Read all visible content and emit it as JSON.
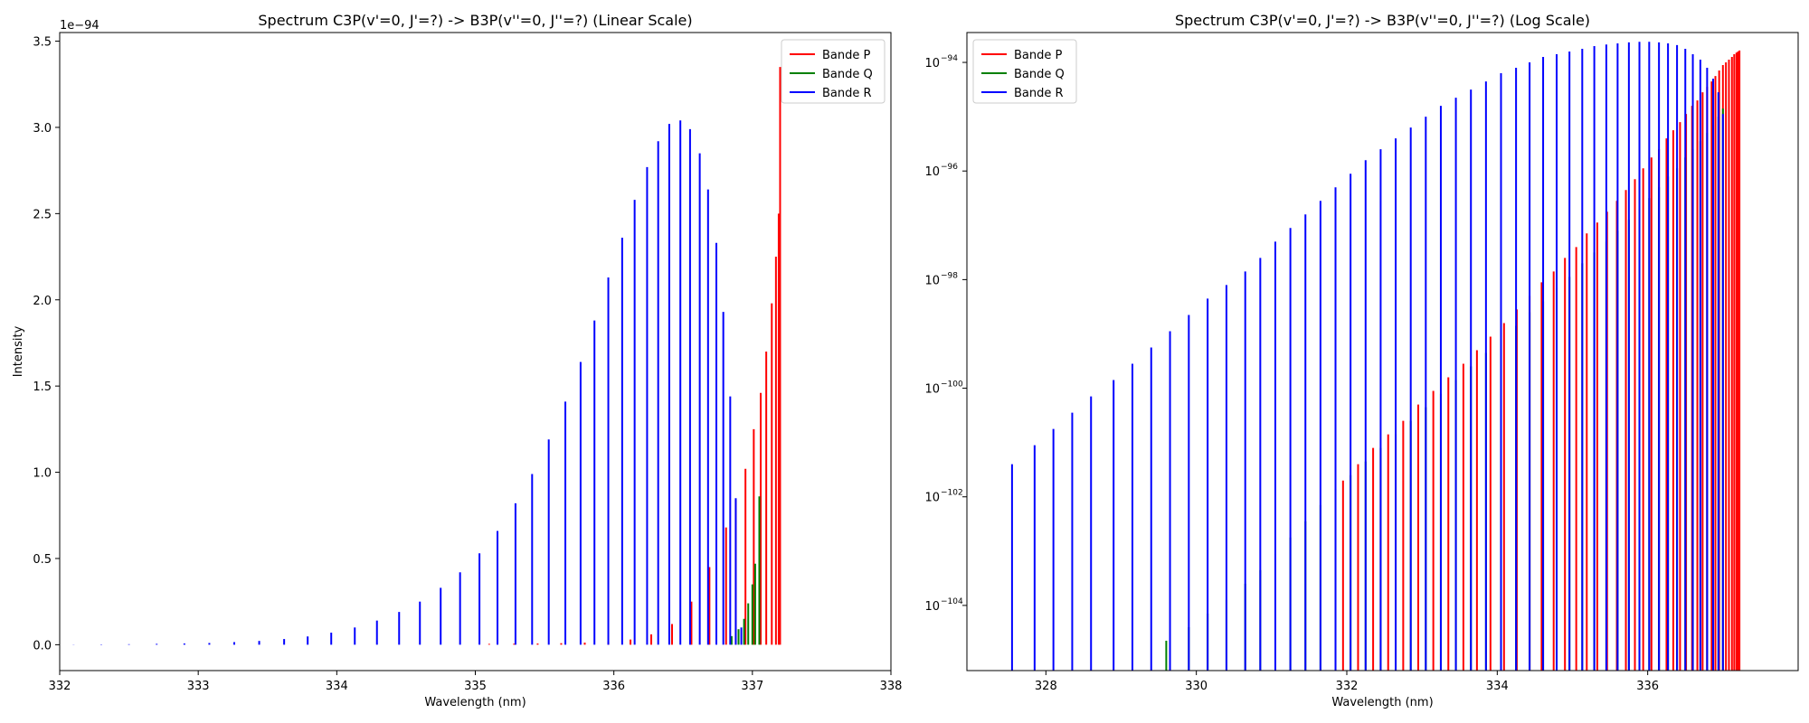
{
  "chart_data": [
    {
      "type": "line",
      "title": "Spectrum C3P(v'=0, J'=?) -> B3P(v''=0, J''=?) (Linear Scale)",
      "xlabel": "Wavelength (nm)",
      "ylabel": "Intensity",
      "y_scale": "linear",
      "y_multiplier_label": "1e−94",
      "xlim": [
        332,
        338
      ],
      "ylim": [
        -0.15,
        3.55
      ],
      "x_ticks": [
        332,
        333,
        334,
        335,
        336,
        337,
        338
      ],
      "y_ticks": [
        0.0,
        0.5,
        1.0,
        1.5,
        2.0,
        2.5,
        3.0,
        3.5
      ],
      "x_tick_labels": [
        "332",
        "333",
        "334",
        "335",
        "336",
        "337",
        "338"
      ],
      "y_tick_labels": [
        "0.0",
        "0.5",
        "1.0",
        "1.5",
        "2.0",
        "2.5",
        "3.0",
        "3.5"
      ],
      "legend_position": "top-right",
      "grid": false,
      "series": [
        {
          "name": "Bande P",
          "color": "#ff0000",
          "x": [
            335.1,
            335.28,
            335.45,
            335.62,
            335.79,
            335.96,
            336.12,
            336.27,
            336.42,
            336.56,
            336.69,
            336.81,
            336.88,
            336.95,
            337.01,
            337.06,
            337.1,
            337.14,
            337.17,
            337.19,
            337.2
          ],
          "y": [
            0.005,
            0.006,
            0.007,
            0.009,
            0.012,
            0.018,
            0.03,
            0.06,
            0.12,
            0.25,
            0.45,
            0.68,
            0.84,
            1.02,
            1.25,
            1.46,
            1.7,
            1.98,
            2.25,
            2.5,
            3.35
          ]
        },
        {
          "name": "Bande Q",
          "color": "#008000",
          "x": [
            336.85,
            336.9,
            336.94,
            336.97,
            337.0,
            337.02,
            337.05
          ],
          "y": [
            0.05,
            0.09,
            0.15,
            0.24,
            0.35,
            0.47,
            0.86
          ]
        },
        {
          "name": "Bande R",
          "color": "#0000ff",
          "x": [
            332.1,
            332.3,
            332.5,
            332.7,
            332.9,
            333.08,
            333.26,
            333.44,
            333.62,
            333.79,
            333.96,
            334.13,
            334.29,
            334.45,
            334.6,
            334.75,
            334.89,
            335.03,
            335.16,
            335.29,
            335.41,
            335.53,
            335.65,
            335.76,
            335.86,
            335.96,
            336.06,
            336.15,
            336.24,
            336.32,
            336.4,
            336.48,
            336.55,
            336.62,
            336.68,
            336.74,
            336.79,
            336.84,
            336.88,
            336.92
          ],
          "y": [
            0.001,
            0.002,
            0.003,
            0.005,
            0.007,
            0.01,
            0.015,
            0.022,
            0.033,
            0.048,
            0.07,
            0.1,
            0.14,
            0.19,
            0.25,
            0.33,
            0.42,
            0.53,
            0.66,
            0.82,
            0.99,
            1.19,
            1.41,
            1.64,
            1.88,
            2.13,
            2.36,
            2.58,
            2.77,
            2.92,
            3.02,
            3.04,
            2.99,
            2.85,
            2.64,
            2.33,
            1.93,
            1.44,
            0.85,
            0.1
          ]
        }
      ]
    },
    {
      "type": "line",
      "title": "Spectrum C3P(v'=0, J'=?) -> B3P(v''=0, J''=?) (Log Scale)",
      "xlabel": "Wavelength (nm)",
      "ylabel": "",
      "y_scale": "log",
      "xlim": [
        326.95,
        338.0
      ],
      "ylim_log10": [
        -105.2,
        -93.45
      ],
      "x_ticks": [
        328,
        330,
        332,
        334,
        336
      ],
      "x_tick_labels": [
        "328",
        "330",
        "332",
        "334",
        "336"
      ],
      "y_ticks_log10": [
        -104,
        -102,
        -100,
        -98,
        -96,
        -94
      ],
      "y_tick_labels": [
        "10",
        "10",
        "10",
        "10",
        "10",
        "10"
      ],
      "y_tick_exponents": [
        "−104",
        "−102",
        "−100",
        "−98",
        "−96",
        "−94"
      ],
      "legend_position": "top-left",
      "grid": false,
      "series": [
        {
          "name": "Bande P",
          "color": "#ff0000",
          "x": [
            331.95,
            332.15,
            332.35,
            332.55,
            332.75,
            332.95,
            333.15,
            333.35,
            333.55,
            333.73,
            333.91,
            334.09,
            334.26,
            334.43,
            334.59,
            334.75,
            334.9,
            335.05,
            335.19,
            335.33,
            335.46,
            335.59,
            335.71,
            335.83,
            335.94,
            336.05,
            336.15,
            336.25,
            336.34,
            336.43,
            336.51,
            336.59,
            336.66,
            336.73,
            336.79,
            336.85,
            336.9,
            336.95,
            337.0,
            337.04,
            337.08,
            337.12,
            337.15,
            337.18,
            337.2,
            337.22
          ],
          "y_log10": [
            -101.7,
            -101.4,
            -101.1,
            -100.85,
            -100.6,
            -100.3,
            -100.05,
            -99.8,
            -99.55,
            -99.3,
            -99.05,
            -98.8,
            -98.55,
            -98.3,
            -98.05,
            -97.85,
            -97.6,
            -97.4,
            -97.15,
            -96.95,
            -96.75,
            -96.55,
            -96.35,
            -96.15,
            -95.95,
            -95.75,
            -95.6,
            -95.4,
            -95.25,
            -95.1,
            -94.95,
            -94.8,
            -94.7,
            -94.55,
            -94.45,
            -94.35,
            -94.25,
            -94.15,
            -94.05,
            -94.0,
            -93.95,
            -93.9,
            -93.85,
            -93.82,
            -93.8,
            -93.78
          ]
        },
        {
          "name": "Bande Q",
          "color": "#008000",
          "x": [
            329.6,
            329.9,
            330.15,
            330.4,
            330.65,
            330.85,
            331.05,
            331.25,
            331.45,
            331.65,
            331.85,
            332.05,
            332.25,
            332.45,
            332.65,
            332.85,
            333.05,
            333.25,
            333.45,
            333.65,
            333.85,
            334.05,
            334.25,
            334.43,
            334.61,
            334.79,
            334.96,
            335.13,
            335.29,
            335.45,
            335.6,
            335.75,
            335.89,
            336.02,
            336.15,
            336.27,
            336.39,
            336.5,
            336.6,
            336.7,
            336.79,
            336.87,
            336.94,
            337.0
          ],
          "y_log10": [
            -104.65,
            -104.4,
            -104.15,
            -103.9,
            -103.6,
            -103.35,
            -103.05,
            -102.75,
            -102.45,
            -102.15,
            -101.85,
            -101.6,
            -101.35,
            -101.1,
            -100.85,
            -100.6,
            -100.35,
            -100.1,
            -99.85,
            -99.6,
            -99.35,
            -99.1,
            -98.85,
            -98.6,
            -98.4,
            -98.15,
            -97.95,
            -97.7,
            -97.5,
            -97.3,
            -97.1,
            -96.9,
            -96.7,
            -96.5,
            -96.3,
            -96.1,
            -95.95,
            -95.75,
            -95.6,
            -95.45,
            -95.3,
            -95.15,
            -95.0,
            -94.85
          ]
        },
        {
          "name": "Bande R",
          "color": "#0000ff",
          "x": [
            327.55,
            327.85,
            328.1,
            328.35,
            328.6,
            328.9,
            329.15,
            329.4,
            329.65,
            329.9,
            330.15,
            330.4,
            330.65,
            330.85,
            331.05,
            331.25,
            331.45,
            331.65,
            331.85,
            332.05,
            332.25,
            332.45,
            332.65,
            332.85,
            333.05,
            333.25,
            333.45,
            333.65,
            333.85,
            334.05,
            334.25,
            334.43,
            334.61,
            334.79,
            334.96,
            335.13,
            335.29,
            335.45,
            335.6,
            335.75,
            335.89,
            336.02,
            336.15,
            336.27,
            336.39,
            336.5,
            336.6,
            336.7,
            336.79,
            336.87,
            336.94,
            337.0
          ],
          "y_log10": [
            -101.4,
            -101.05,
            -100.75,
            -100.45,
            -100.15,
            -99.85,
            -99.55,
            -99.25,
            -98.95,
            -98.65,
            -98.35,
            -98.1,
            -97.85,
            -97.6,
            -97.3,
            -97.05,
            -96.8,
            -96.55,
            -96.3,
            -96.05,
            -95.8,
            -95.6,
            -95.4,
            -95.2,
            -95.0,
            -94.8,
            -94.65,
            -94.5,
            -94.35,
            -94.2,
            -94.1,
            -94.0,
            -93.9,
            -93.85,
            -93.8,
            -93.75,
            -93.7,
            -93.67,
            -93.65,
            -93.63,
            -93.62,
            -93.62,
            -93.63,
            -93.65,
            -93.68,
            -93.75,
            -93.85,
            -93.95,
            -94.1,
            -94.3,
            -94.55,
            -94.95
          ]
        }
      ]
    }
  ]
}
